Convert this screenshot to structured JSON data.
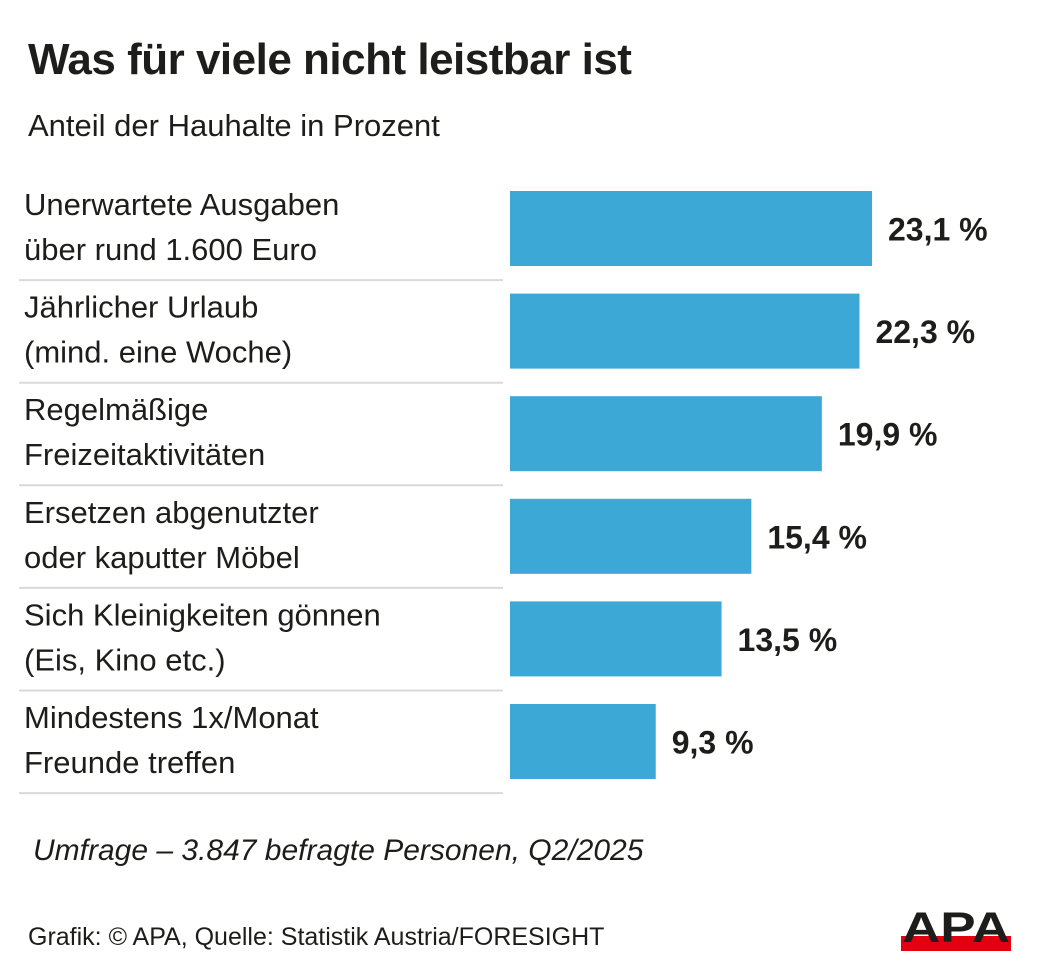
{
  "header": {
    "title": "Was für viele nicht leistbar ist",
    "subtitle": "Anteil der Hauhalte in Prozent"
  },
  "footer": {
    "note": "Umfrage – 3.847 befragte Personen, Q2/2025",
    "credit": "Grafik: © APA, Quelle: Statistik Austria/FORESIGHT",
    "logo_text": "APA"
  },
  "colors": {
    "bar": "#3ba8d6",
    "text": "#1d1d1b",
    "divider": "#d9d9d9",
    "logo_black": "#1d1d1b",
    "logo_red": "#e3000f"
  },
  "chart_data": {
    "type": "bar",
    "orientation": "horizontal",
    "title": "Was für viele nicht leistbar ist",
    "subtitle": "Anteil der Hauhalte in Prozent",
    "xlabel": "",
    "ylabel": "",
    "unit": "%",
    "xlim": [
      0,
      23.1
    ],
    "grid": false,
    "legend": "none",
    "categories": [
      [
        "Unerwartete Ausgaben",
        "über rund 1.600 Euro"
      ],
      [
        "Jährlicher Urlaub",
        "(mind. eine Woche)"
      ],
      [
        "Regelmäßige",
        "Freizeitaktivitäten"
      ],
      [
        "Ersetzen abgenutzter",
        "oder kaputter Möbel"
      ],
      [
        "Sich Kleinigkeiten gönnen",
        "(Eis, Kino etc.)"
      ],
      [
        "Mindestens 1x/Monat",
        "Freunde treffen"
      ]
    ],
    "values": [
      23.1,
      22.3,
      19.9,
      15.4,
      13.5,
      9.3
    ],
    "value_labels": [
      "23,1 %",
      "22,3 %",
      "19,9 %",
      "15,4 %",
      "13,5 %",
      "9,3 %"
    ]
  }
}
